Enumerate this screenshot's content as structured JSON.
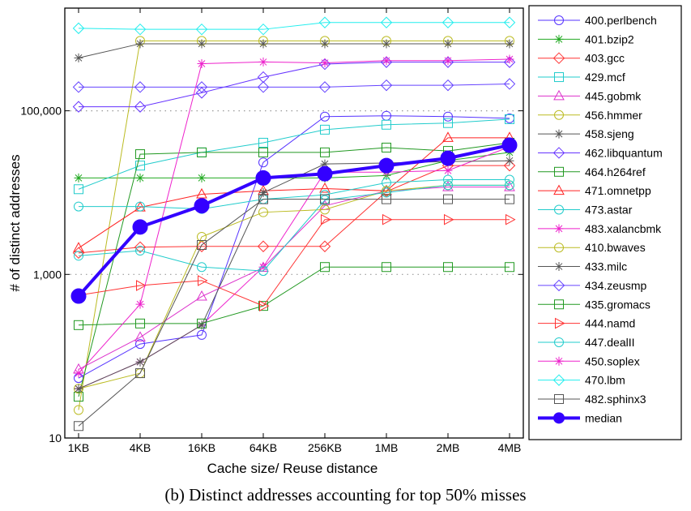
{
  "caption": "(b)  Distinct addresses accounting for top 50% misses",
  "chart_data": {
    "type": "line",
    "title": "",
    "xlabel": "Cache size/ Reuse distance",
    "ylabel": "# of distinct addresses",
    "categories": [
      "1KB",
      "4KB",
      "16KB",
      "64KB",
      "256KB",
      "1MB",
      "2MB",
      "4MB"
    ],
    "y_scale": "log",
    "ylim": [
      10,
      1800000
    ],
    "yticks": [
      10,
      1000,
      100000
    ],
    "ytick_labels": [
      "10",
      "1,000",
      "100,000"
    ],
    "grid": "dotted horizontal at 1,000 and 100,000",
    "legend_placement": "right, outside",
    "series": [
      {
        "name": "400.perlbench",
        "color": "#5533ff",
        "marker": "circle",
        "values": [
          54,
          141,
          182,
          23400,
          85000,
          87000,
          85000,
          81000
        ]
      },
      {
        "name": "401.bzip2",
        "color": "#22aa22",
        "marker": "star",
        "values": [
          15100,
          15100,
          15100,
          15100,
          15100,
          16200,
          24600,
          31000
        ]
      },
      {
        "name": "403.gcc",
        "color": "#ff3333",
        "marker": "diamond",
        "values": [
          1830,
          2150,
          2200,
          2200,
          2200,
          10300,
          21400,
          21400
        ]
      },
      {
        "name": "429.mcf",
        "color": "#22cccc",
        "marker": "square",
        "values": [
          11000,
          21400,
          31000,
          40700,
          58800,
          67600,
          70800,
          79000
        ]
      },
      {
        "name": "445.gobmk",
        "color": "#dd33cc",
        "marker": "triangle",
        "values": [
          69,
          170,
          537,
          1210,
          6900,
          10500,
          11700,
          11700
        ]
      },
      {
        "name": "456.hmmer",
        "color": "#bbbb22",
        "marker": "circle",
        "values": [
          22,
          716000,
          716000,
          716000,
          716000,
          716000,
          716000,
          716000
        ]
      },
      {
        "name": "458.sjeng",
        "color": "#555555",
        "marker": "star",
        "values": [
          443000,
          660000,
          660000,
          660000,
          660000,
          660000,
          660000,
          660000
        ]
      },
      {
        "name": "462.libquantum",
        "color": "#6633ff",
        "marker": "diamond",
        "values": [
          112000,
          112000,
          166000,
          258000,
          372000,
          393000,
          393000,
          393000
        ]
      },
      {
        "name": "464.h264ref",
        "color": "#229922",
        "marker": "square",
        "values": [
          32,
          29500,
          31000,
          31000,
          31000,
          35500,
          32300,
          40700
        ]
      },
      {
        "name": "471.omnetpp",
        "color": "#ff2222",
        "marker": "triangle",
        "values": [
          2100,
          6600,
          9550,
          10500,
          11200,
          10500,
          46800,
          46800
        ]
      },
      {
        "name": "473.astar",
        "color": "#22cccc",
        "marker": "circle",
        "values": [
          6760,
          6760,
          6300,
          8300,
          9400,
          13200,
          14400,
          14400
        ]
      },
      {
        "name": "483.xalancbmk",
        "color": "#ee22cc",
        "marker": "star",
        "values": [
          40,
          85,
          240,
          1230,
          17800,
          17800,
          18600,
          36300
        ]
      },
      {
        "name": "410.bwaves",
        "color": "#bbbb22",
        "marker": "circle",
        "values": [
          40,
          62,
          2880,
          5750,
          6200,
          10500,
          12300,
          12300
        ]
      },
      {
        "name": "433.milc",
        "color": "#555555",
        "marker": "star",
        "values": [
          40,
          85,
          240,
          10000,
          22400,
          23000,
          24000,
          24500
        ]
      },
      {
        "name": "434.zeusmp",
        "color": "#6644ff",
        "marker": "diamond",
        "values": [
          195000,
          195000,
          195000,
          195000,
          195000,
          205000,
          205000,
          213000
        ]
      },
      {
        "name": "435.gromacs",
        "color": "#229922",
        "marker": "square",
        "values": [
          240,
          251,
          251,
          412,
          1230,
          1230,
          1230,
          1230
        ]
      },
      {
        "name": "444.namd",
        "color": "#ff3333",
        "marker": "triangle-right",
        "values": [
          556,
          731,
          840,
          412,
          4680,
          4680,
          4680,
          4680
        ]
      },
      {
        "name": "447.dealII",
        "color": "#22cccc",
        "marker": "circle",
        "values": [
          1690,
          1950,
          1230,
          1100,
          8100,
          10000,
          12300,
          12300
        ]
      },
      {
        "name": "450.soplex",
        "color": "#ee22cc",
        "marker": "star",
        "values": [
          62,
          431,
          377000,
          395000,
          385000,
          410000,
          410000,
          427000
        ]
      },
      {
        "name": "470.lbm",
        "color": "#22eeee",
        "marker": "diamond",
        "values": [
          1020000,
          990000,
          990000,
          990000,
          1200000,
          1200000,
          1200000,
          1200000
        ]
      },
      {
        "name": "482.sphinx3",
        "color": "#555555",
        "marker": "square",
        "values": [
          14,
          62,
          2290,
          8300,
          8300,
          8300,
          8300,
          8300
        ]
      },
      {
        "name": "median",
        "color": "#3300ff",
        "marker": "filled-circle",
        "values": [
          543,
          3800,
          6900,
          15100,
          17000,
          21400,
          26300,
          38000
        ]
      }
    ]
  }
}
